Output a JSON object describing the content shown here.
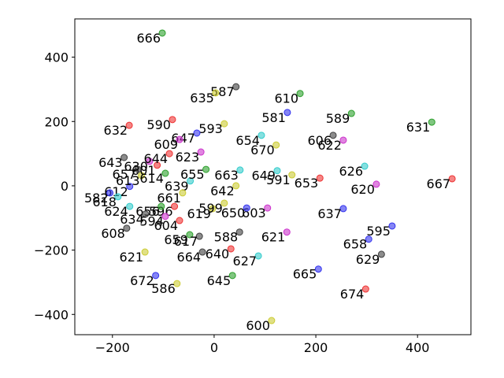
{
  "chart_data": {
    "type": "scatter",
    "xlim": [
      -274,
      505
    ],
    "ylim": [
      -463,
      519
    ],
    "xticks": [
      {
        "value": -200,
        "label": "−200"
      },
      0,
      200,
      400
    ],
    "yticks": [
      {
        "value": -400,
        "label": "−400"
      },
      {
        "value": -200,
        "label": "−200"
      },
      0,
      200,
      400
    ],
    "labels": [
      "666",
      "587",
      "635",
      "610",
      "589",
      "581",
      "631",
      "632",
      "590",
      "593",
      "647",
      "654",
      "670",
      "606",
      "622",
      "626",
      "667",
      "620",
      "591",
      "653",
      "649",
      "663",
      "642",
      "637",
      "603",
      "621",
      "627",
      "650",
      "658",
      "595",
      "629",
      "674",
      "665",
      "600",
      "645",
      "640",
      "588",
      "586",
      "672",
      "664",
      "621",
      "608",
      "659",
      "643",
      "609",
      "612",
      "618",
      "613",
      "601",
      "614",
      "657",
      "630",
      "644",
      "623",
      "639",
      "655",
      "661",
      "596",
      "624",
      "656",
      "634",
      "582",
      "594",
      "619",
      "604",
      "617",
      "599"
    ],
    "x": [
      -102,
      43,
      3,
      169,
      270,
      144,
      428,
      -167,
      -82,
      20,
      -34,
      93,
      122,
      234,
      254,
      296,
      468,
      319,
      153,
      208,
      124,
      51,
      43,
      254,
      105,
      143,
      87,
      64,
      304,
      350,
      329,
      298,
      205,
      113,
      36,
      33,
      50,
      -73,
      -115,
      -23,
      -136,
      -172,
      -48,
      -177,
      -68,
      -166,
      -189,
      -143,
      -112,
      -96,
      -150,
      -127,
      -88,
      -26,
      -47,
      -16,
      -62,
      -78,
      -166,
      -104,
      -135,
      -205,
      -96,
      -3,
      -68,
      -29,
      20
    ],
    "values": [
      475,
      308,
      289,
      287,
      225,
      228,
      198,
      188,
      206,
      193,
      164,
      157,
      127,
      157,
      142,
      61,
      22,
      5,
      34,
      24,
      47,
      49,
      0,
      -71,
      -69,
      -144,
      -218,
      -69,
      -166,
      -125,
      -213,
      -321,
      -259,
      -419,
      -279,
      -196,
      -144,
      -304,
      -279,
      -206,
      -206,
      -132,
      -152,
      88,
      144,
      -2,
      -34,
      32,
      64,
      39,
      51,
      76,
      100,
      105,
      15,
      51,
      -22,
      -64,
      -64,
      -64,
      -88,
      -22,
      -95,
      -71,
      -108,
      -157,
      -54
    ],
    "colors": [
      "#2ca02c",
      "#404040",
      "#cccc33",
      "#2ca02c",
      "#2ca02c",
      "#3333ee",
      "#2ca02c",
      "#ee3333",
      "#ee3333",
      "#cccc33",
      "#3333ee",
      "#33cccc",
      "#cccc33",
      "#404040",
      "#cc33cc",
      "#33cccc",
      "#ee3333",
      "#cc33cc",
      "#cccc33",
      "#ee3333",
      "#33cccc",
      "#33cccc",
      "#cccc33",
      "#3333ee",
      "#cc33cc",
      "#cc33cc",
      "#33cccc",
      "#3333ee",
      "#3333ee",
      "#3333ee",
      "#404040",
      "#ee3333",
      "#3333ee",
      "#cccc33",
      "#2ca02c",
      "#ee3333",
      "#404040",
      "#cccc33",
      "#3333ee",
      "#404040",
      "#cccc33",
      "#404040",
      "#2ca02c",
      "#404040",
      "#cc33cc",
      "#3333ee",
      "#33cccc",
      "#cccc33",
      "#ee3333",
      "#2ca02c",
      "#404040",
      "#cc33cc",
      "#ee3333",
      "#cc33cc",
      "#33cccc",
      "#2ca02c",
      "#cccc33",
      "#ee3333",
      "#33cccc",
      "#2ca02c",
      "#404040",
      "#3333ee",
      "#cc33cc",
      "#cccc33",
      "#ee3333",
      "#404040",
      "#cccc33"
    ]
  }
}
